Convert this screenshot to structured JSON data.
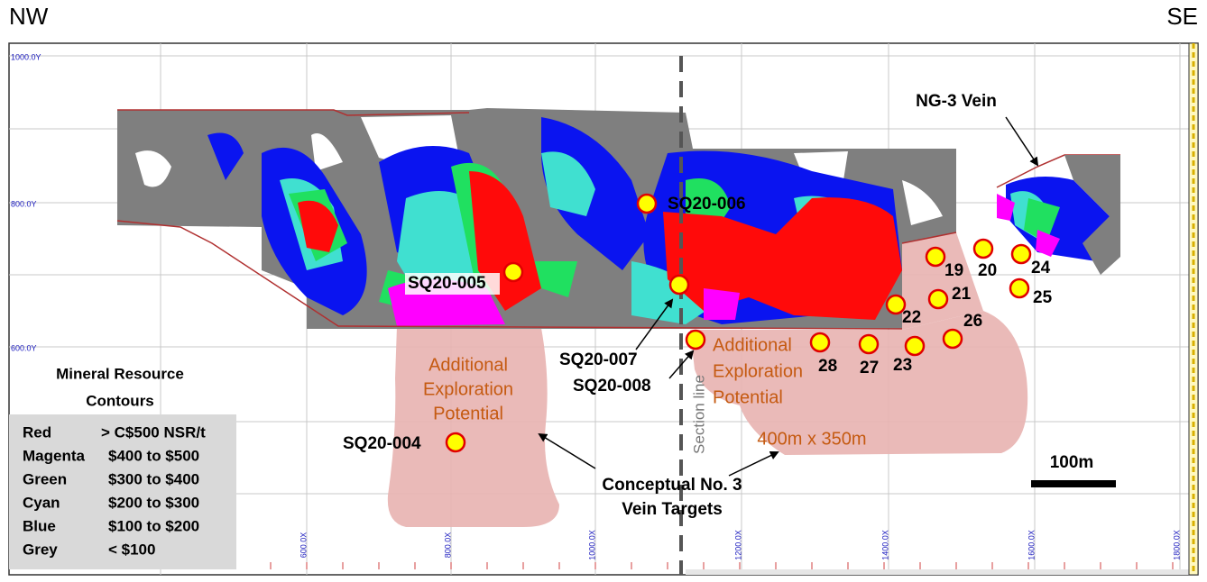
{
  "header": {
    "left": "NW",
    "right": "SE"
  },
  "axes": {
    "y_labels": [
      "1000.0Y",
      "800.0Y",
      "600.0Y"
    ],
    "x_labels": [
      "600.0X",
      "800.0X",
      "1000.0X",
      "1200.0X",
      "1400.0X",
      "1600.0X",
      "1800.0X"
    ]
  },
  "vein_label": "NG-3 Vein",
  "drill_holes": [
    {
      "label": "SQ20-006"
    },
    {
      "label": "SQ20-005"
    },
    {
      "label": "SQ20-007"
    },
    {
      "label": "SQ20-008"
    },
    {
      "label": "SQ20-004"
    },
    {
      "label": "19"
    },
    {
      "label": "20"
    },
    {
      "label": "24"
    },
    {
      "label": "21"
    },
    {
      "label": "25"
    },
    {
      "label": "22"
    },
    {
      "label": "26"
    },
    {
      "label": "28"
    },
    {
      "label": "27"
    },
    {
      "label": "23"
    }
  ],
  "exploration_left": [
    "Additional",
    "Exploration",
    "Potential"
  ],
  "exploration_right": [
    "Additional",
    "Exploration",
    "Potential"
  ],
  "section_line": "Section line",
  "target_size": "400m x 350m",
  "targets_label": [
    "Conceptual No. 3",
    "Vein Targets"
  ],
  "scale_bar": "100m",
  "legend": {
    "title": [
      "Mineral Resource",
      "Contours"
    ],
    "rows": [
      {
        "name": "Red",
        "range": "> C$500 NSR/t"
      },
      {
        "name": "Magenta",
        "range": "$400 to $500"
      },
      {
        "name": "Green",
        "range": "$300 to $400"
      },
      {
        "name": "Cyan",
        "range": "$200 to $300"
      },
      {
        "name": "Blue",
        "range": "$100 to $200"
      },
      {
        "name": "Grey",
        "range": "< $100"
      }
    ]
  }
}
